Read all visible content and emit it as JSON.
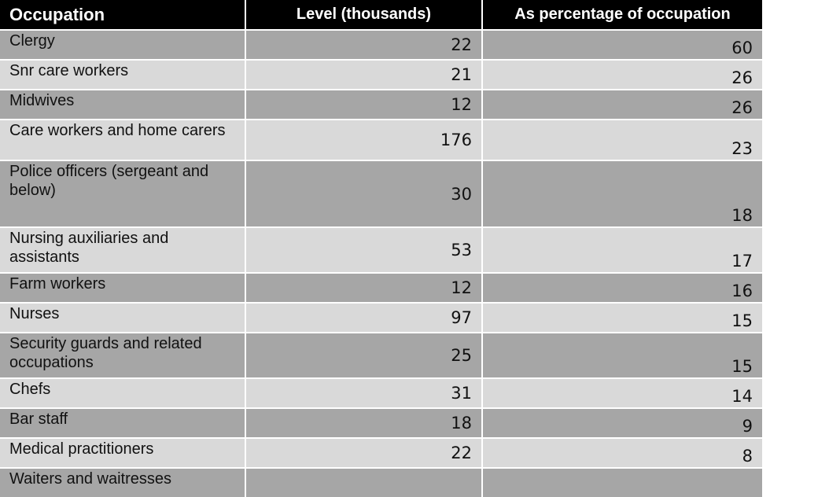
{
  "table": {
    "headers": {
      "occupation": "Occupation",
      "level": "Level (thousands)",
      "percentage": "As percentage of occupation"
    },
    "rows": [
      {
        "occupation": "Clergy",
        "level": "22",
        "percentage": "60"
      },
      {
        "occupation": "Snr care workers",
        "level": "21",
        "percentage": "26"
      },
      {
        "occupation": "Midwives",
        "level": "12",
        "percentage": "26"
      },
      {
        "occupation": "Care workers and home carers",
        "level": "176",
        "percentage": "23"
      },
      {
        "occupation": "Police officers (sergeant and below)",
        "level": "30",
        "percentage": "18"
      },
      {
        "occupation": "Nursing auxiliaries and assistants",
        "level": "53",
        "percentage": "17"
      },
      {
        "occupation": "Farm workers",
        "level": "12",
        "percentage": "16"
      },
      {
        "occupation": "Nurses",
        "level": "97",
        "percentage": "15"
      },
      {
        "occupation": "Security guards and related occupations",
        "level": "25",
        "percentage": "15"
      },
      {
        "occupation": "Chefs",
        "level": "31",
        "percentage": "14"
      },
      {
        "occupation": "Bar staff",
        "level": "18",
        "percentage": "9"
      },
      {
        "occupation": "Medical practitioners",
        "level": "22",
        "percentage": "8"
      },
      {
        "occupation": "Waiters and waitresses",
        "level": "",
        "percentage": ""
      }
    ]
  }
}
